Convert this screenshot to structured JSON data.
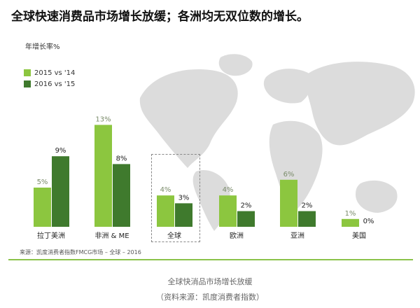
{
  "title": "全球快速消费品市场增长放缓；各洲均无双位数的增长。",
  "source": "来源：凯度消费者指数FMCG市场 – 全球 – 2016",
  "caption": {
    "line1": "全球快消品市场增长放缓",
    "line2": "（资料来源：凯度消费者指数）"
  },
  "colors": {
    "light_green": "#8cc63f",
    "dark_green": "#3f7a2d",
    "map": "#dcdcdc",
    "rule": "#8bc34a"
  },
  "chart_data": {
    "type": "bar",
    "ylabel": "年增长率%",
    "categories": [
      "拉丁美洲",
      "非洲 & ME",
      "全球",
      "欧洲",
      "亚洲",
      "美国"
    ],
    "series": [
      {
        "name": "2015 vs '14",
        "values": [
          5,
          13,
          4,
          4,
          6,
          1
        ],
        "labels": [
          "5%",
          "13%",
          "4%",
          "4%",
          "6%",
          "1%"
        ]
      },
      {
        "name": "2016 vs '15",
        "values": [
          9,
          8,
          3,
          2,
          2,
          0
        ],
        "labels": [
          "9%",
          "8%",
          "3%",
          "2%",
          "2%",
          "0%"
        ]
      }
    ],
    "highlighted_category": "全球",
    "legend_position": "top-left",
    "grid": false
  }
}
